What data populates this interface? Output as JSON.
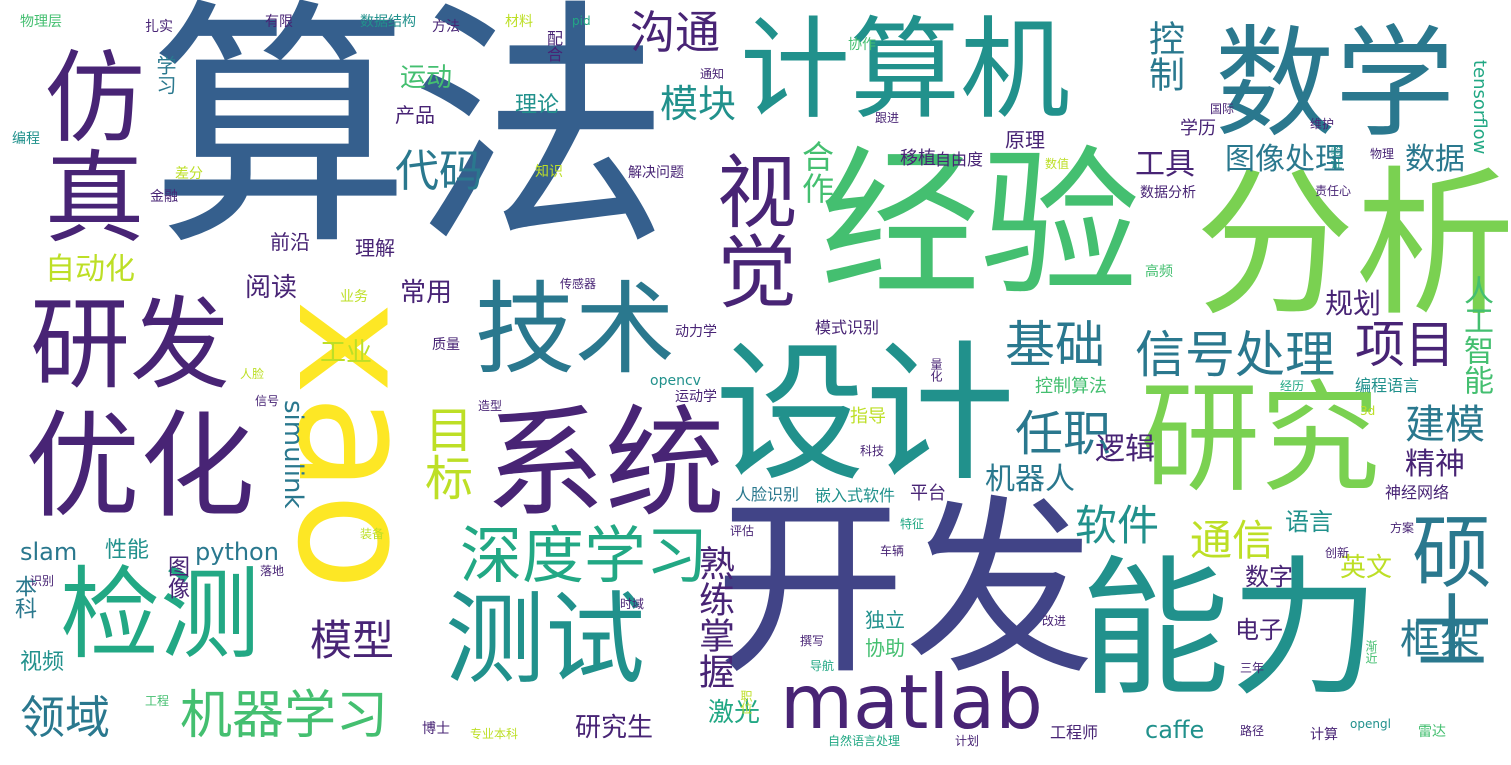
{
  "palette": {
    "dark_purple": "#482475",
    "purple": "#414487",
    "blue": "#355f8d",
    "steel": "#2a788e",
    "teal": "#21918c",
    "green_teal": "#22a884",
    "green": "#44bf70",
    "lime": "#7ad151",
    "yellow": "#fde725",
    "yellow_green": "#bddf26"
  },
  "words": [
    {
      "text": "算法",
      "color": "blue"
    },
    {
      "text": "xao",
      "color": "yellow"
    },
    {
      "text": "开发",
      "color": "purple"
    },
    {
      "text": "能力",
      "color": "teal"
    },
    {
      "text": "经验",
      "color": "green"
    },
    {
      "text": "分析",
      "color": "lime"
    },
    {
      "text": "设计",
      "color": "teal"
    },
    {
      "text": "计算机",
      "color": "teal"
    },
    {
      "text": "数学",
      "color": "steel"
    },
    {
      "text": "研究",
      "color": "lime"
    },
    {
      "text": "系统",
      "color": "dark_purple"
    },
    {
      "text": "优化",
      "color": "dark_purple"
    },
    {
      "text": "研发",
      "color": "dark_purple"
    },
    {
      "text": "仿真",
      "color": "dark_purple"
    },
    {
      "text": "技术",
      "color": "steel"
    },
    {
      "text": "检测",
      "color": "green_teal"
    },
    {
      "text": "测试",
      "color": "teal"
    },
    {
      "text": "视觉",
      "color": "dark_purple"
    },
    {
      "text": "硕士",
      "color": "steel"
    },
    {
      "text": "matlab",
      "color": "dark_purple"
    },
    {
      "text": "深度学习",
      "color": "green_teal"
    },
    {
      "text": "机器学习",
      "color": "green"
    },
    {
      "text": "信号处理",
      "color": "steel"
    },
    {
      "text": "项目",
      "color": "dark_purple"
    },
    {
      "text": "基础",
      "color": "steel"
    },
    {
      "text": "任职",
      "color": "steel"
    },
    {
      "text": "目标",
      "color": "yellow_green"
    },
    {
      "text": "沟通",
      "color": "dark_purple"
    },
    {
      "text": "代码",
      "color": "steel"
    },
    {
      "text": "模块",
      "color": "teal"
    },
    {
      "text": "软件",
      "color": "teal"
    },
    {
      "text": "通信",
      "color": "yellow_green"
    },
    {
      "text": "模型",
      "color": "dark_purple"
    },
    {
      "text": "领域",
      "color": "steel"
    },
    {
      "text": "建模",
      "color": "steel"
    },
    {
      "text": "精神",
      "color": "dark_purple"
    },
    {
      "text": "框架",
      "color": "steel"
    },
    {
      "text": "熟练掌握",
      "color": "dark_purple"
    },
    {
      "text": "图像处理",
      "color": "steel"
    },
    {
      "text": "数据",
      "color": "steel"
    },
    {
      "text": "控制",
      "color": "steel"
    },
    {
      "text": "工具",
      "color": "dark_purple"
    },
    {
      "text": "自动化",
      "color": "yellow_green"
    },
    {
      "text": "合作",
      "color": "green"
    },
    {
      "text": "机器人",
      "color": "steel"
    },
    {
      "text": "逻辑",
      "color": "dark_purple"
    },
    {
      "text": "规划",
      "color": "dark_purple"
    },
    {
      "text": "人工智能",
      "color": "green"
    },
    {
      "text": "阅读",
      "color": "dark_purple"
    },
    {
      "text": "常用",
      "color": "dark_purple"
    },
    {
      "text": "工业",
      "color": "yellow_green"
    },
    {
      "text": "simulink",
      "color": "steel"
    },
    {
      "text": "python",
      "color": "steel"
    },
    {
      "text": "slam",
      "color": "steel"
    },
    {
      "text": "性能",
      "color": "teal"
    },
    {
      "text": "图像",
      "color": "dark_purple"
    },
    {
      "text": "本科",
      "color": "steel"
    },
    {
      "text": "视频",
      "color": "teal"
    },
    {
      "text": "研究生",
      "color": "dark_purple"
    },
    {
      "text": "激光",
      "color": "green_teal"
    },
    {
      "text": "caffe",
      "color": "teal"
    },
    {
      "text": "英文",
      "color": "yellow_green"
    },
    {
      "text": "数字",
      "color": "dark_purple"
    },
    {
      "text": "语言",
      "color": "teal"
    },
    {
      "text": "电子",
      "color": "dark_purple"
    },
    {
      "text": "运动",
      "color": "green"
    },
    {
      "text": "理论",
      "color": "teal"
    },
    {
      "text": "学习",
      "color": "steel"
    },
    {
      "text": "tensorflow",
      "color": "green_teal"
    },
    {
      "text": "前沿",
      "color": "dark_purple"
    },
    {
      "text": "理解",
      "color": "dark_purple"
    },
    {
      "text": "原理",
      "color": "dark_purple"
    },
    {
      "text": "学历",
      "color": "dark_purple"
    },
    {
      "text": "移植",
      "color": "dark_purple"
    },
    {
      "text": "自由度",
      "color": "dark_purple"
    },
    {
      "text": "产品",
      "color": "dark_purple"
    },
    {
      "text": "独立",
      "color": "teal"
    },
    {
      "text": "协助",
      "color": "green"
    },
    {
      "text": "平台",
      "color": "dark_purple"
    },
    {
      "text": "指导",
      "color": "yellow_green"
    },
    {
      "text": "控制算法",
      "color": "green"
    },
    {
      "text": "编程语言",
      "color": "teal"
    },
    {
      "text": "神经网络",
      "color": "dark_purple"
    },
    {
      "text": "嵌入式软件",
      "color": "teal"
    },
    {
      "text": "人脸识别",
      "color": "steel"
    },
    {
      "text": "模式识别",
      "color": "dark_purple"
    },
    {
      "text": "动力学",
      "color": "dark_purple"
    },
    {
      "text": "运动学",
      "color": "dark_purple"
    },
    {
      "text": "opencv",
      "color": "teal"
    },
    {
      "text": "数据分析",
      "color": "dark_purple"
    },
    {
      "text": "解决问题",
      "color": "dark_purple"
    },
    {
      "text": "知识",
      "color": "yellow_green"
    },
    {
      "text": "金融",
      "color": "dark_purple"
    },
    {
      "text": "差分",
      "color": "yellow_green"
    },
    {
      "text": "编程",
      "color": "teal"
    },
    {
      "text": "物理层",
      "color": "green"
    },
    {
      "text": "扎实",
      "color": "dark_purple"
    },
    {
      "text": "有限",
      "color": "dark_purple"
    },
    {
      "text": "数据结构",
      "color": "teal"
    },
    {
      "text": "方法",
      "color": "dark_purple"
    },
    {
      "text": "材料",
      "color": "yellow_green"
    },
    {
      "text": "pid",
      "color": "green_teal"
    },
    {
      "text": "配合",
      "color": "dark_purple"
    },
    {
      "text": "通知",
      "color": "dark_purple"
    },
    {
      "text": "协作",
      "color": "green"
    },
    {
      "text": "跟进",
      "color": "dark_purple"
    },
    {
      "text": "国际",
      "color": "dark_purple"
    },
    {
      "text": "维护",
      "color": "dark_purple"
    },
    {
      "text": "验证",
      "color": "teal"
    },
    {
      "text": "数值",
      "color": "yellow_green"
    },
    {
      "text": "物理",
      "color": "dark_purple"
    },
    {
      "text": "责任心",
      "color": "dark_purple"
    },
    {
      "text": "高频",
      "color": "green"
    },
    {
      "text": "传感器",
      "color": "dark_purple"
    },
    {
      "text": "业务",
      "color": "yellow_green"
    },
    {
      "text": "质量",
      "color": "dark_purple"
    },
    {
      "text": "人脸",
      "color": "yellow_green"
    },
    {
      "text": "信号",
      "color": "dark_purple"
    },
    {
      "text": "造型",
      "color": "dark_purple"
    },
    {
      "text": "量化",
      "color": "dark_purple"
    },
    {
      "text": "经历",
      "color": "green_teal"
    },
    {
      "text": "3d",
      "color": "yellow_green"
    },
    {
      "text": "科技",
      "color": "dark_purple"
    },
    {
      "text": "特征",
      "color": "green_teal"
    },
    {
      "text": "方案",
      "color": "dark_purple"
    },
    {
      "text": "评估",
      "color": "dark_purple"
    },
    {
      "text": "装备",
      "color": "yellow_green"
    },
    {
      "text": "车辆",
      "color": "dark_purple"
    },
    {
      "text": "创新",
      "color": "dark_purple"
    },
    {
      "text": "识别",
      "color": "dark_purple"
    },
    {
      "text": "落地",
      "color": "dark_purple"
    },
    {
      "text": "时域",
      "color": "dark_purple"
    },
    {
      "text": "撰写",
      "color": "dark_purple"
    },
    {
      "text": "改进",
      "color": "dark_purple"
    },
    {
      "text": "导航",
      "color": "green_teal"
    },
    {
      "text": "渐近",
      "color": "green"
    },
    {
      "text": "三年",
      "color": "dark_purple"
    },
    {
      "text": "工程",
      "color": "green"
    },
    {
      "text": "职位",
      "color": "yellow_green"
    },
    {
      "text": "博士",
      "color": "dark_purple"
    },
    {
      "text": "专业本科",
      "color": "yellow_green"
    },
    {
      "text": "自然语言处理",
      "color": "green_teal"
    },
    {
      "text": "计划",
      "color": "dark_purple"
    },
    {
      "text": "工程师",
      "color": "dark_purple"
    },
    {
      "text": "路径",
      "color": "dark_purple"
    },
    {
      "text": "opengl",
      "color": "teal"
    },
    {
      "text": "计算",
      "color": "dark_purple"
    },
    {
      "text": "雷达",
      "color": "green"
    }
  ]
}
